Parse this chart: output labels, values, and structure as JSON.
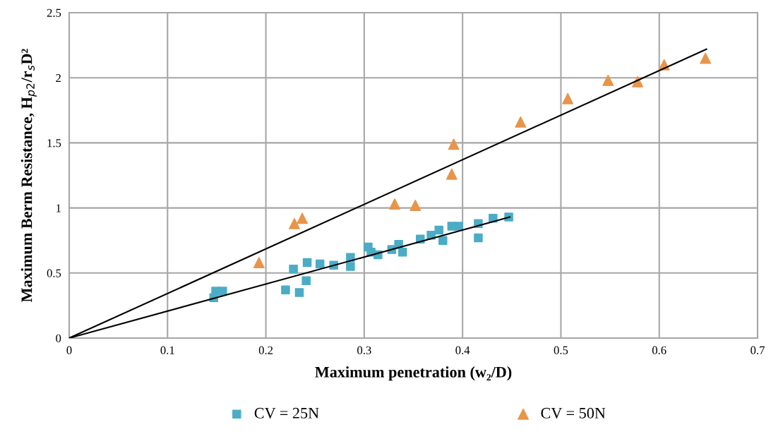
{
  "chart_data": {
    "type": "scatter",
    "xlabel": "Maximum penetration (w₂/D)",
    "ylabel": "Maximum Berm Resistance, H$_{p2}$/r$_{s}$D²",
    "xlim": [
      0,
      0.7
    ],
    "ylim": [
      0,
      2.5
    ],
    "xticks": [
      0,
      0.1,
      0.2,
      0.3,
      0.4,
      0.5,
      0.6,
      0.7
    ],
    "yticks": [
      0,
      0.5,
      1,
      1.5,
      2,
      2.5
    ],
    "grid": true,
    "legend": "bottom",
    "series": [
      {
        "name": "CV = 25N",
        "color": "#4bacc6",
        "marker": "square",
        "x": [
          0.147,
          0.149,
          0.156,
          0.22,
          0.234,
          0.241,
          0.228,
          0.242,
          0.255,
          0.269,
          0.286,
          0.286,
          0.304,
          0.307,
          0.314,
          0.328,
          0.335,
          0.339,
          0.357,
          0.368,
          0.376,
          0.38,
          0.389,
          0.396,
          0.416,
          0.416,
          0.431,
          0.447
        ],
        "values": [
          0.31,
          0.36,
          0.36,
          0.37,
          0.35,
          0.44,
          0.53,
          0.58,
          0.57,
          0.56,
          0.62,
          0.55,
          0.7,
          0.66,
          0.64,
          0.68,
          0.72,
          0.66,
          0.76,
          0.79,
          0.83,
          0.75,
          0.86,
          0.86,
          0.88,
          0.77,
          0.92,
          0.93
        ]
      },
      {
        "name": "CV = 50N",
        "color": "#e8954a",
        "marker": "triangle",
        "x": [
          0.193,
          0.229,
          0.237,
          0.331,
          0.352,
          0.389,
          0.391,
          0.459,
          0.507,
          0.548,
          0.578,
          0.605,
          0.647
        ],
        "values": [
          0.58,
          0.88,
          0.92,
          1.03,
          1.02,
          1.26,
          1.49,
          1.66,
          1.84,
          1.98,
          1.97,
          2.1,
          2.15
        ]
      },
      {
        "type": "line",
        "color": "#000000",
        "marker": "none",
        "x": [
          0,
          0.648
        ],
        "values": [
          0,
          2.22
        ]
      },
      {
        "type": "line",
        "color": "#000000",
        "marker": "none",
        "x": [
          0,
          0.448
        ],
        "values": [
          0,
          0.93
        ]
      }
    ]
  }
}
